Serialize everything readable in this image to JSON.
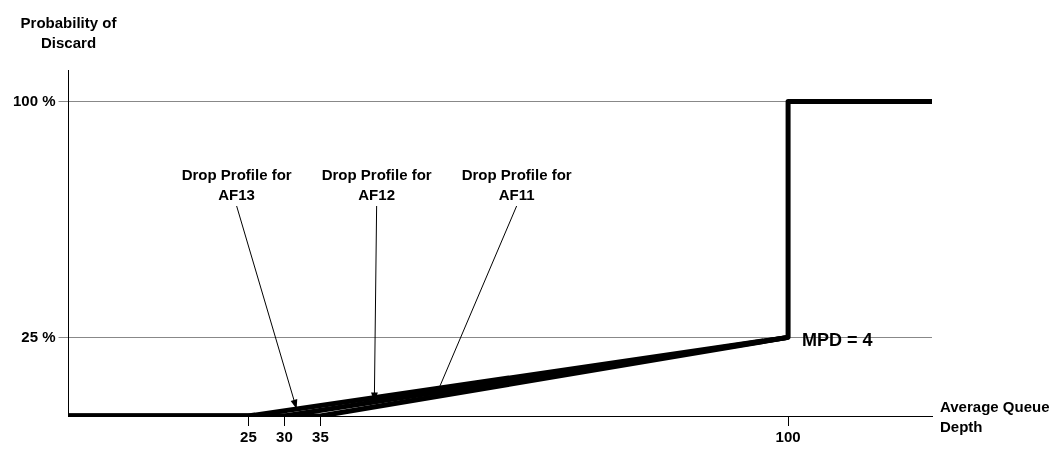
{
  "chart_data": {
    "type": "line",
    "xlabel": "Average Queue Depth",
    "ylabel": "Probability of Discard",
    "series": [
      {
        "color": "#000000",
        "x": [
          0,
          25,
          100,
          100,
          120
        ],
        "values": [
          0,
          0,
          25,
          100,
          100
        ]
      },
      {
        "color": "#000000",
        "x": [
          0,
          30,
          100
        ],
        "values": [
          0,
          0,
          25
        ]
      },
      {
        "color": "#000000",
        "x": [
          0,
          35,
          100
        ],
        "values": [
          0,
          0,
          25
        ]
      }
    ],
    "xlim": [
      0,
      120
    ],
    "xticks": [
      25,
      30,
      35,
      100
    ],
    "ylim": [
      0,
      110
    ],
    "yticks": [
      {
        "value": 25,
        "label": "25 %"
      },
      {
        "value": 100,
        "label": "100 %"
      }
    ],
    "grid": "y",
    "legend": false,
    "marker": "none",
    "line_style": "solid",
    "annotations": [
      {
        "text": "Drop Profile for AF13",
        "x": 31.7,
        "y": 2.2
      },
      {
        "text": "Drop Profile for AF12",
        "x": 42.5,
        "y": 4.5
      },
      {
        "text": "Drop Profile for AF11",
        "x": 51,
        "y": 6.2
      },
      {
        "text": "MPD = 4",
        "x": 100,
        "y": 25
      }
    ]
  }
}
